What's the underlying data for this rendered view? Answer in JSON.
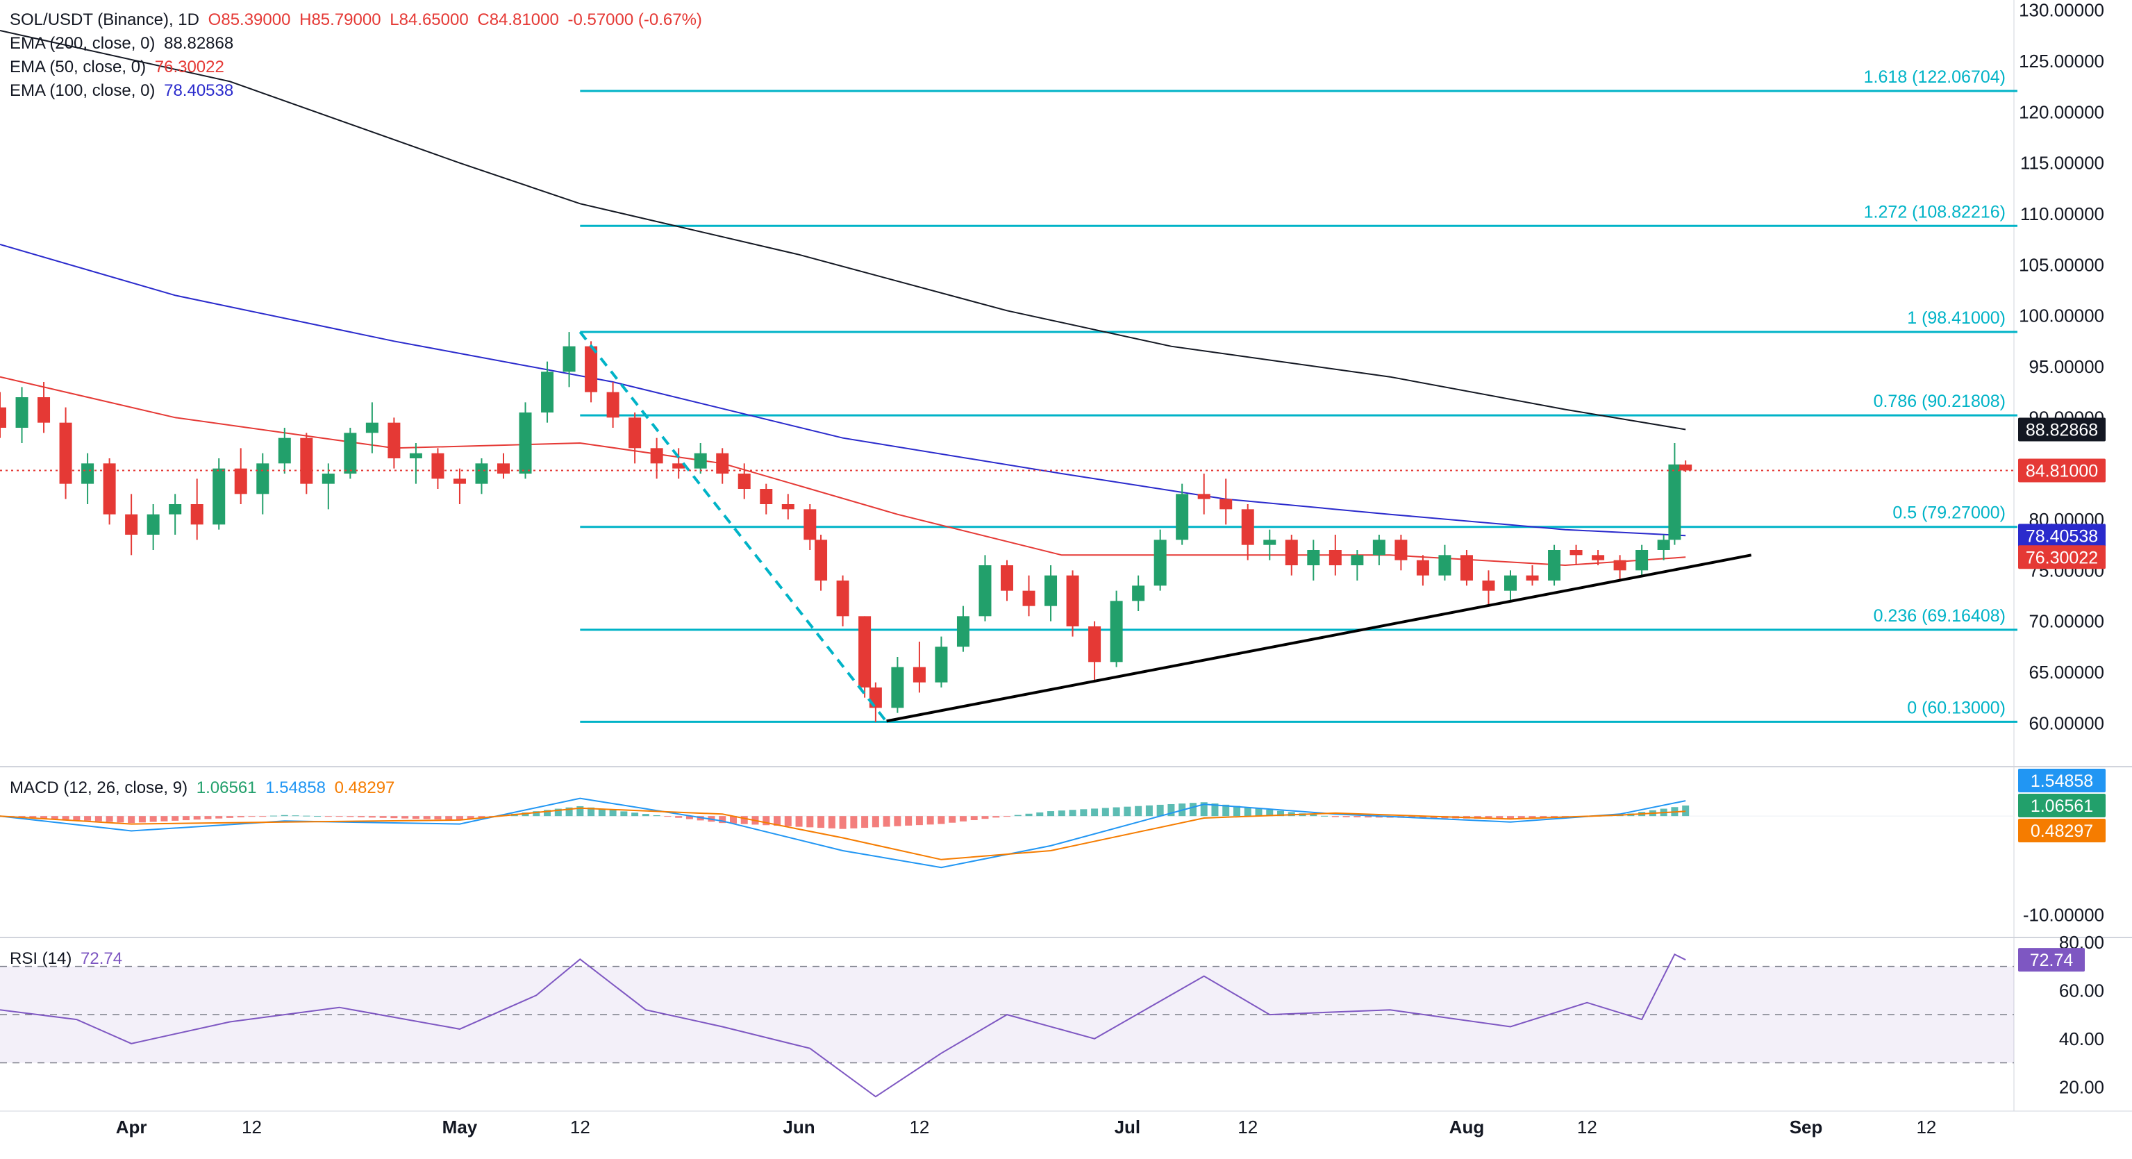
{
  "header": {
    "symbol": "SOL/USDT (Binance), 1D",
    "open": "O85.39000",
    "high": "H85.79000",
    "low": "L84.65000",
    "close": "C84.81000",
    "change": "-0.57000 (-0.67%)",
    "up_color": "#22a06b",
    "down_color": "#e53935"
  },
  "indicators": [
    {
      "label": "EMA (200, close, 0)",
      "value": "88.82868",
      "color": "#131722"
    },
    {
      "label": "EMA (50, close, 0)",
      "value": "76.30022",
      "color": "#e53935"
    },
    {
      "label": "EMA (100, close, 0)",
      "value": "78.40538",
      "color": "#2a2acc"
    }
  ],
  "price_axis": {
    "ticks": [
      "130.00000",
      "125.00000",
      "120.00000",
      "115.00000",
      "110.00000",
      "105.00000",
      "100.00000",
      "95.00000",
      "90.00000",
      "80.00000",
      "75.00000",
      "70.00000",
      "65.00000",
      "60.00000"
    ],
    "tags": [
      {
        "value": "88.82868",
        "color": "#131722"
      },
      {
        "value": "84.81000",
        "color": "#e53935"
      },
      {
        "value": "78.40538",
        "color": "#2a2acc"
      },
      {
        "value": "76.30022",
        "color": "#e53935"
      }
    ]
  },
  "time_axis": [
    "Apr",
    "12",
    "May",
    "12",
    "Jun",
    "12",
    "Jul",
    "12",
    "Aug",
    "12",
    "Sep",
    "12"
  ],
  "fib_levels": [
    {
      "label": "1.618 (122.06704)",
      "value": 122.06704
    },
    {
      "label": "1.272 (108.82216)",
      "value": 108.82216
    },
    {
      "label": "1 (98.41000)",
      "value": 98.41
    },
    {
      "label": "0.786 (90.21808)",
      "value": 90.21808
    },
    {
      "label": "0.5 (79.27000)",
      "value": 79.27
    },
    {
      "label": "0.236 (69.16408)",
      "value": 69.16408
    },
    {
      "label": "0 (60.13000)",
      "value": 60.13
    }
  ],
  "macd": {
    "title": "MACD (12, 26, close, 9)",
    "v1": "1.06561",
    "v2": "1.54858",
    "v3": "0.48297",
    "c1": "#22a06b",
    "c2": "#2196f3",
    "c3": "#f57c00",
    "axis_label": "-10.00000",
    "tags": [
      {
        "value": "1.54858",
        "color": "#2196f3"
      },
      {
        "value": "1.06561",
        "color": "#22a06b"
      },
      {
        "value": "0.48297",
        "color": "#f57c00"
      }
    ]
  },
  "rsi": {
    "title": "RSI (14)",
    "value": "72.74",
    "color": "#7e57c2",
    "ticks": [
      "80.00",
      "60.00",
      "40.00",
      "20.00"
    ],
    "tag": "72.74"
  },
  "chart_data": {
    "type": "candlestick",
    "xlabel": "",
    "ylabel": "",
    "x_range": [
      "2024-03-20",
      "2024-09-20"
    ],
    "ylim": [
      56,
      131
    ],
    "candles": [
      {
        "date": "2024-03-20",
        "o": 91.0,
        "h": 92.5,
        "l": 88.0,
        "c": 89.0
      },
      {
        "date": "2024-03-22",
        "o": 89.0,
        "h": 93.0,
        "l": 87.5,
        "c": 92.0
      },
      {
        "date": "2024-03-24",
        "o": 92.0,
        "h": 93.5,
        "l": 88.5,
        "c": 89.5
      },
      {
        "date": "2024-03-26",
        "o": 89.5,
        "h": 91.0,
        "l": 82.0,
        "c": 83.5
      },
      {
        "date": "2024-03-28",
        "o": 83.5,
        "h": 86.5,
        "l": 81.5,
        "c": 85.5
      },
      {
        "date": "2024-03-30",
        "o": 85.5,
        "h": 86.0,
        "l": 79.5,
        "c": 80.5
      },
      {
        "date": "2024-04-01",
        "o": 80.5,
        "h": 82.5,
        "l": 76.5,
        "c": 78.5
      },
      {
        "date": "2024-04-03",
        "o": 78.5,
        "h": 81.5,
        "l": 77.0,
        "c": 80.5
      },
      {
        "date": "2024-04-05",
        "o": 80.5,
        "h": 82.5,
        "l": 78.5,
        "c": 81.5
      },
      {
        "date": "2024-04-07",
        "o": 81.5,
        "h": 84.0,
        "l": 78.0,
        "c": 79.5
      },
      {
        "date": "2024-04-09",
        "o": 79.5,
        "h": 86.0,
        "l": 79.0,
        "c": 85.0
      },
      {
        "date": "2024-04-11",
        "o": 85.0,
        "h": 87.0,
        "l": 81.5,
        "c": 82.5
      },
      {
        "date": "2024-04-13",
        "o": 82.5,
        "h": 86.5,
        "l": 80.5,
        "c": 85.5
      },
      {
        "date": "2024-04-15",
        "o": 85.5,
        "h": 89.0,
        "l": 84.5,
        "c": 88.0
      },
      {
        "date": "2024-04-17",
        "o": 88.0,
        "h": 88.5,
        "l": 82.5,
        "c": 83.5
      },
      {
        "date": "2024-04-19",
        "o": 83.5,
        "h": 85.5,
        "l": 81.0,
        "c": 84.5
      },
      {
        "date": "2024-04-21",
        "o": 84.5,
        "h": 89.0,
        "l": 84.0,
        "c": 88.5
      },
      {
        "date": "2024-04-23",
        "o": 88.5,
        "h": 91.5,
        "l": 86.5,
        "c": 89.5
      },
      {
        "date": "2024-04-25",
        "o": 89.5,
        "h": 90.0,
        "l": 85.0,
        "c": 86.0
      },
      {
        "date": "2024-04-27",
        "o": 86.0,
        "h": 87.5,
        "l": 83.5,
        "c": 86.5
      },
      {
        "date": "2024-04-29",
        "o": 86.5,
        "h": 87.0,
        "l": 83.0,
        "c": 84.0
      },
      {
        "date": "2024-05-01",
        "o": 84.0,
        "h": 85.0,
        "l": 81.5,
        "c": 83.5
      },
      {
        "date": "2024-05-03",
        "o": 83.5,
        "h": 86.0,
        "l": 82.5,
        "c": 85.5
      },
      {
        "date": "2024-05-05",
        "o": 85.5,
        "h": 86.5,
        "l": 84.0,
        "c": 84.5
      },
      {
        "date": "2024-05-07",
        "o": 84.5,
        "h": 91.5,
        "l": 84.0,
        "c": 90.5
      },
      {
        "date": "2024-05-09",
        "o": 90.5,
        "h": 95.5,
        "l": 89.5,
        "c": 94.5
      },
      {
        "date": "2024-05-11",
        "o": 94.5,
        "h": 98.4,
        "l": 93.0,
        "c": 97.0
      },
      {
        "date": "2024-05-13",
        "o": 97.0,
        "h": 97.5,
        "l": 91.5,
        "c": 92.5
      },
      {
        "date": "2024-05-15",
        "o": 92.5,
        "h": 93.5,
        "l": 89.0,
        "c": 90.0
      },
      {
        "date": "2024-05-17",
        "o": 90.0,
        "h": 90.5,
        "l": 85.5,
        "c": 87.0
      },
      {
        "date": "2024-05-19",
        "o": 87.0,
        "h": 88.0,
        "l": 84.0,
        "c": 85.5
      },
      {
        "date": "2024-05-21",
        "o": 85.5,
        "h": 87.0,
        "l": 84.0,
        "c": 85.0
      },
      {
        "date": "2024-05-23",
        "o": 85.0,
        "h": 87.5,
        "l": 84.5,
        "c": 86.5
      },
      {
        "date": "2024-05-25",
        "o": 86.5,
        "h": 87.0,
        "l": 83.5,
        "c": 84.5
      },
      {
        "date": "2024-05-27",
        "o": 84.5,
        "h": 85.5,
        "l": 82.0,
        "c": 83.0
      },
      {
        "date": "2024-05-29",
        "o": 83.0,
        "h": 83.5,
        "l": 80.5,
        "c": 81.5
      },
      {
        "date": "2024-05-31",
        "o": 81.5,
        "h": 82.5,
        "l": 80.0,
        "c": 81.0
      },
      {
        "date": "2024-06-02",
        "o": 81.0,
        "h": 81.5,
        "l": 77.0,
        "c": 78.0
      },
      {
        "date": "2024-06-03",
        "o": 78.0,
        "h": 78.5,
        "l": 73.0,
        "c": 74.0
      },
      {
        "date": "2024-06-05",
        "o": 74.0,
        "h": 74.5,
        "l": 69.5,
        "c": 70.5
      },
      {
        "date": "2024-06-07",
        "o": 70.5,
        "h": 70.5,
        "l": 62.5,
        "c": 63.5
      },
      {
        "date": "2024-06-08",
        "o": 63.5,
        "h": 64.0,
        "l": 60.1,
        "c": 61.5
      },
      {
        "date": "2024-06-10",
        "o": 61.5,
        "h": 66.5,
        "l": 61.0,
        "c": 65.5
      },
      {
        "date": "2024-06-12",
        "o": 65.5,
        "h": 68.0,
        "l": 63.0,
        "c": 64.0
      },
      {
        "date": "2024-06-14",
        "o": 64.0,
        "h": 68.5,
        "l": 63.5,
        "c": 67.5
      },
      {
        "date": "2024-06-16",
        "o": 67.5,
        "h": 71.5,
        "l": 67.0,
        "c": 70.5
      },
      {
        "date": "2024-06-18",
        "o": 70.5,
        "h": 76.5,
        "l": 70.0,
        "c": 75.5
      },
      {
        "date": "2024-06-20",
        "o": 75.5,
        "h": 76.0,
        "l": 72.0,
        "c": 73.0
      },
      {
        "date": "2024-06-22",
        "o": 73.0,
        "h": 74.5,
        "l": 70.5,
        "c": 71.5
      },
      {
        "date": "2024-06-24",
        "o": 71.5,
        "h": 75.5,
        "l": 70.0,
        "c": 74.5
      },
      {
        "date": "2024-06-26",
        "o": 74.5,
        "h": 75.0,
        "l": 68.5,
        "c": 69.5
      },
      {
        "date": "2024-06-28",
        "o": 69.5,
        "h": 70.0,
        "l": 64.0,
        "c": 66.0
      },
      {
        "date": "2024-06-30",
        "o": 66.0,
        "h": 73.0,
        "l": 65.5,
        "c": 72.0
      },
      {
        "date": "2024-07-02",
        "o": 72.0,
        "h": 74.5,
        "l": 71.0,
        "c": 73.5
      },
      {
        "date": "2024-07-04",
        "o": 73.5,
        "h": 79.0,
        "l": 73.0,
        "c": 78.0
      },
      {
        "date": "2024-07-06",
        "o": 78.0,
        "h": 83.5,
        "l": 77.5,
        "c": 82.5
      },
      {
        "date": "2024-07-08",
        "o": 82.5,
        "h": 84.5,
        "l": 80.5,
        "c": 82.0
      },
      {
        "date": "2024-07-10",
        "o": 82.0,
        "h": 84.0,
        "l": 79.5,
        "c": 81.0
      },
      {
        "date": "2024-07-12",
        "o": 81.0,
        "h": 81.5,
        "l": 76.0,
        "c": 77.5
      },
      {
        "date": "2024-07-14",
        "o": 77.5,
        "h": 79.0,
        "l": 76.0,
        "c": 78.0
      },
      {
        "date": "2024-07-16",
        "o": 78.0,
        "h": 78.5,
        "l": 74.5,
        "c": 75.5
      },
      {
        "date": "2024-07-18",
        "o": 75.5,
        "h": 78.0,
        "l": 74.0,
        "c": 77.0
      },
      {
        "date": "2024-07-20",
        "o": 77.0,
        "h": 78.5,
        "l": 74.5,
        "c": 75.5
      },
      {
        "date": "2024-07-22",
        "o": 75.5,
        "h": 77.0,
        "l": 74.0,
        "c": 76.5
      },
      {
        "date": "2024-07-24",
        "o": 76.5,
        "h": 78.5,
        "l": 75.5,
        "c": 78.0
      },
      {
        "date": "2024-07-26",
        "o": 78.0,
        "h": 78.5,
        "l": 75.0,
        "c": 76.0
      },
      {
        "date": "2024-07-28",
        "o": 76.0,
        "h": 76.5,
        "l": 73.5,
        "c": 74.5
      },
      {
        "date": "2024-07-30",
        "o": 74.5,
        "h": 77.5,
        "l": 74.0,
        "c": 76.5
      },
      {
        "date": "2024-08-01",
        "o": 76.5,
        "h": 77.0,
        "l": 73.5,
        "c": 74.0
      },
      {
        "date": "2024-08-03",
        "o": 74.0,
        "h": 75.0,
        "l": 71.5,
        "c": 73.0
      },
      {
        "date": "2024-08-05",
        "o": 73.0,
        "h": 75.0,
        "l": 72.0,
        "c": 74.5
      },
      {
        "date": "2024-08-07",
        "o": 74.5,
        "h": 75.5,
        "l": 73.5,
        "c": 74.0
      },
      {
        "date": "2024-08-09",
        "o": 74.0,
        "h": 77.5,
        "l": 73.5,
        "c": 77.0
      },
      {
        "date": "2024-08-11",
        "o": 77.0,
        "h": 77.5,
        "l": 75.5,
        "c": 76.5
      },
      {
        "date": "2024-08-13",
        "o": 76.5,
        "h": 77.0,
        "l": 75.5,
        "c": 76.0
      },
      {
        "date": "2024-08-15",
        "o": 76.0,
        "h": 76.5,
        "l": 74.0,
        "c": 75.0
      },
      {
        "date": "2024-08-17",
        "o": 75.0,
        "h": 77.5,
        "l": 74.5,
        "c": 77.0
      },
      {
        "date": "2024-08-19",
        "o": 77.0,
        "h": 78.5,
        "l": 76.0,
        "c": 78.0
      },
      {
        "date": "2024-08-20",
        "o": 78.0,
        "h": 87.5,
        "l": 77.5,
        "c": 85.4
      },
      {
        "date": "2024-08-21",
        "o": 85.39,
        "h": 85.79,
        "l": 84.65,
        "c": 84.81
      }
    ],
    "ema200": [
      {
        "date": "2024-03-20",
        "v": 128.0
      },
      {
        "date": "2024-04-10",
        "v": 123.0
      },
      {
        "date": "2024-05-01",
        "v": 115.0
      },
      {
        "date": "2024-05-12",
        "v": 111.0
      },
      {
        "date": "2024-06-01",
        "v": 106.0
      },
      {
        "date": "2024-06-20",
        "v": 100.5
      },
      {
        "date": "2024-07-05",
        "v": 97.0
      },
      {
        "date": "2024-07-25",
        "v": 94.0
      },
      {
        "date": "2024-08-10",
        "v": 90.8
      },
      {
        "date": "2024-08-21",
        "v": 88.83
      }
    ],
    "ema100": [
      {
        "date": "2024-03-20",
        "v": 107.0
      },
      {
        "date": "2024-04-05",
        "v": 102.0
      },
      {
        "date": "2024-04-25",
        "v": 97.5
      },
      {
        "date": "2024-05-15",
        "v": 93.5
      },
      {
        "date": "2024-06-05",
        "v": 88.0
      },
      {
        "date": "2024-06-25",
        "v": 84.5
      },
      {
        "date": "2024-07-10",
        "v": 82.0
      },
      {
        "date": "2024-07-25",
        "v": 80.5
      },
      {
        "date": "2024-08-10",
        "v": 79.0
      },
      {
        "date": "2024-08-21",
        "v": 78.41
      }
    ],
    "ema50": [
      {
        "date": "2024-03-20",
        "v": 94.0
      },
      {
        "date": "2024-04-05",
        "v": 90.0
      },
      {
        "date": "2024-04-25",
        "v": 87.0
      },
      {
        "date": "2024-05-12",
        "v": 87.5
      },
      {
        "date": "2024-05-25",
        "v": 85.5
      },
      {
        "date": "2024-06-10",
        "v": 80.5
      },
      {
        "date": "2024-06-25",
        "v": 76.5
      },
      {
        "date": "2024-07-10",
        "v": 76.5
      },
      {
        "date": "2024-07-25",
        "v": 76.5
      },
      {
        "date": "2024-08-10",
        "v": 75.5
      },
      {
        "date": "2024-08-21",
        "v": 76.3
      }
    ],
    "trendline": [
      {
        "date": "2024-06-09",
        "v": 60.2
      },
      {
        "date": "2024-08-27",
        "v": 76.5
      }
    ],
    "fib_anchor": [
      {
        "date": "2024-05-12",
        "v": 98.41
      },
      {
        "date": "2024-06-09",
        "v": 60.13
      }
    ],
    "last_price": 84.81,
    "macd_ylim": [
      -12,
      5
    ],
    "macd_line": [
      {
        "date": "2024-03-20",
        "v": 0.0
      },
      {
        "date": "2024-04-01",
        "v": -1.5
      },
      {
        "date": "2024-04-15",
        "v": -0.5
      },
      {
        "date": "2024-05-01",
        "v": -0.8
      },
      {
        "date": "2024-05-12",
        "v": 1.8
      },
      {
        "date": "2024-05-25",
        "v": -0.5
      },
      {
        "date": "2024-06-05",
        "v": -3.5
      },
      {
        "date": "2024-06-14",
        "v": -5.2
      },
      {
        "date": "2024-06-24",
        "v": -3.0
      },
      {
        "date": "2024-07-08",
        "v": 1.2
      },
      {
        "date": "2024-07-20",
        "v": 0.2
      },
      {
        "date": "2024-08-05",
        "v": -0.6
      },
      {
        "date": "2024-08-15",
        "v": 0.2
      },
      {
        "date": "2024-08-21",
        "v": 1.55
      }
    ],
    "signal_line": [
      {
        "date": "2024-03-20",
        "v": 0.0
      },
      {
        "date": "2024-04-01",
        "v": -0.8
      },
      {
        "date": "2024-04-15",
        "v": -0.6
      },
      {
        "date": "2024-05-01",
        "v": -0.4
      },
      {
        "date": "2024-05-12",
        "v": 0.8
      },
      {
        "date": "2024-05-25",
        "v": 0.2
      },
      {
        "date": "2024-06-05",
        "v": -2.2
      },
      {
        "date": "2024-06-14",
        "v": -4.4
      },
      {
        "date": "2024-06-24",
        "v": -3.5
      },
      {
        "date": "2024-07-08",
        "v": -0.2
      },
      {
        "date": "2024-07-20",
        "v": 0.3
      },
      {
        "date": "2024-08-05",
        "v": -0.3
      },
      {
        "date": "2024-08-15",
        "v": 0.1
      },
      {
        "date": "2024-08-21",
        "v": 0.48
      }
    ],
    "rsi_ylim": [
      10,
      82
    ],
    "rsi_levels": [
      70,
      50,
      30
    ],
    "rsi_line": [
      {
        "date": "2024-03-20",
        "v": 52
      },
      {
        "date": "2024-03-27",
        "v": 48
      },
      {
        "date": "2024-04-01",
        "v": 38
      },
      {
        "date": "2024-04-10",
        "v": 47
      },
      {
        "date": "2024-04-20",
        "v": 53
      },
      {
        "date": "2024-05-01",
        "v": 44
      },
      {
        "date": "2024-05-08",
        "v": 58
      },
      {
        "date": "2024-05-12",
        "v": 73
      },
      {
        "date": "2024-05-18",
        "v": 52
      },
      {
        "date": "2024-05-25",
        "v": 45
      },
      {
        "date": "2024-06-02",
        "v": 36
      },
      {
        "date": "2024-06-08",
        "v": 16
      },
      {
        "date": "2024-06-14",
        "v": 34
      },
      {
        "date": "2024-06-20",
        "v": 50
      },
      {
        "date": "2024-06-28",
        "v": 40
      },
      {
        "date": "2024-07-08",
        "v": 66
      },
      {
        "date": "2024-07-14",
        "v": 50
      },
      {
        "date": "2024-07-25",
        "v": 52
      },
      {
        "date": "2024-08-05",
        "v": 45
      },
      {
        "date": "2024-08-12",
        "v": 55
      },
      {
        "date": "2024-08-17",
        "v": 48
      },
      {
        "date": "2024-08-20",
        "v": 75
      },
      {
        "date": "2024-08-21",
        "v": 72.74
      }
    ]
  }
}
